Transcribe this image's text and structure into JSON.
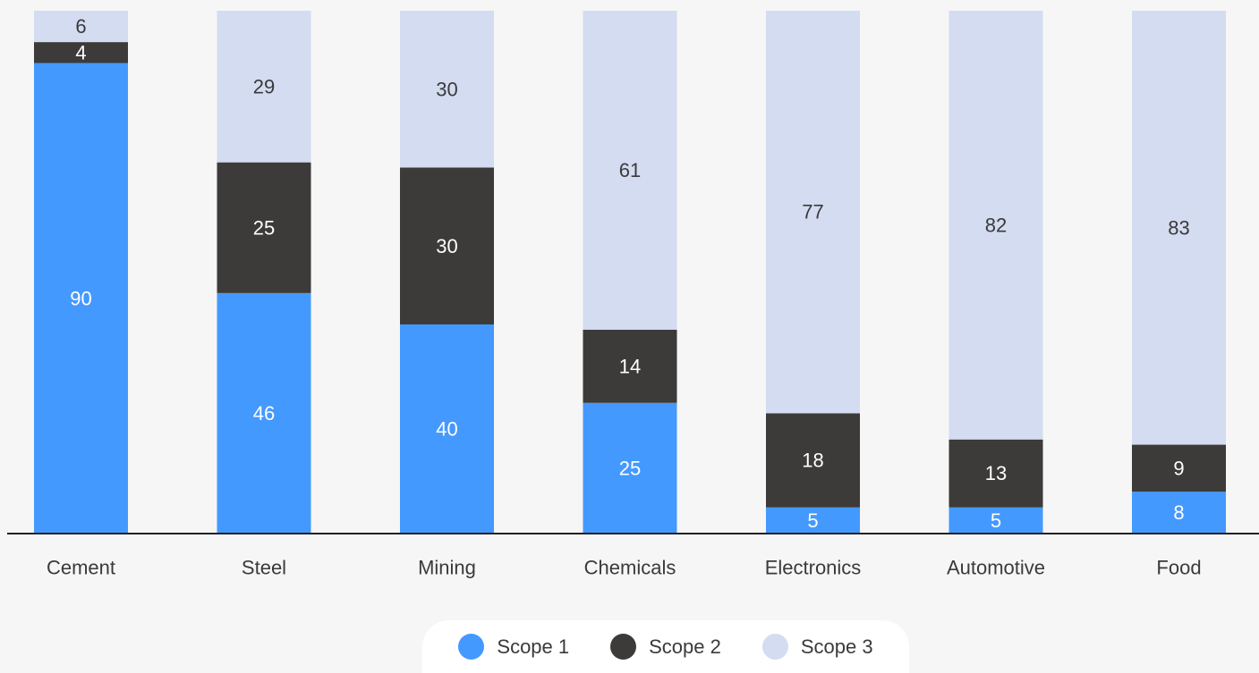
{
  "chart_data": {
    "type": "bar",
    "stacked": true,
    "categories": [
      "Cement",
      "Steel",
      "Mining",
      "Chemicals",
      "Electronics",
      "Automotive",
      "Food"
    ],
    "series": [
      {
        "name": "Scope 1",
        "color": "#4499ff",
        "label_color": "#ffffff",
        "values": [
          90,
          46,
          40,
          25,
          5,
          5,
          8
        ]
      },
      {
        "name": "Scope 2",
        "color": "#3c3b39",
        "label_color": "#ffffff",
        "values": [
          4,
          25,
          30,
          14,
          18,
          13,
          9
        ]
      },
      {
        "name": "Scope 3",
        "color": "#d3dcf0",
        "label_color": "#3a3a3a",
        "values": [
          6,
          29,
          30,
          61,
          77,
          82,
          83
        ]
      }
    ],
    "ylim": [
      0,
      100
    ],
    "grid": false,
    "legend_position": "bottom-center",
    "title": "",
    "xlabel": "",
    "ylabel": ""
  }
}
